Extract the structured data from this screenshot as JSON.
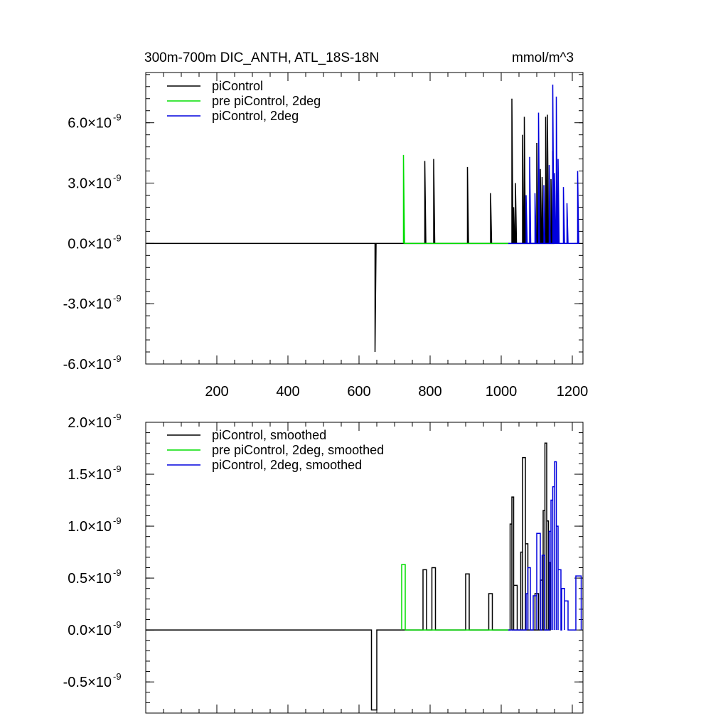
{
  "chart_data": [
    {
      "type": "line",
      "title": "300m-700m DIC_ANTH, ATL_18S-18N",
      "units": "mmol/m^3",
      "xlim": [
        0,
        1230
      ],
      "ylim": [
        -6e-09,
        8.5e-09
      ],
      "x_ticks": [
        200,
        400,
        600,
        800,
        1000,
        1200
      ],
      "x_tick_labels": [
        "200",
        "400",
        "600",
        "800",
        "1000",
        "1200"
      ],
      "y_ticks": [
        -6e-09,
        -3e-09,
        0.0,
        3e-09,
        6e-09
      ],
      "y_tick_labels": [
        {
          "mant": "-6.0",
          "exp": "-9"
        },
        {
          "mant": "-3.0",
          "exp": "-9"
        },
        {
          "mant": "0.0",
          "exp": "-9"
        },
        {
          "mant": "3.0",
          "exp": "-9"
        },
        {
          "mant": "6.0",
          "exp": "-9"
        }
      ],
      "legend_position": "top-left",
      "series": [
        {
          "name": "piControl",
          "color": "#000000",
          "x_range": [
            0,
            1030
          ],
          "spikes": [
            [
              645,
              -5.4e-09
            ],
            [
              785,
              4.1e-09
            ],
            [
              810,
              4.2e-09
            ],
            [
              905,
              3.8e-09
            ],
            [
              970,
              2.5e-09
            ],
            [
              1030,
              7.2e-09
            ],
            [
              1035,
              1.8e-09
            ],
            [
              1040,
              3e-09
            ],
            [
              1060,
              5.4e-09
            ],
            [
              1065,
              6.3e-09
            ],
            [
              1100,
              5e-09
            ],
            [
              1110,
              3.7e-09
            ],
            [
              1115,
              3.3e-09
            ],
            [
              1125,
              6.3e-09
            ],
            [
              1130,
              6.4e-09
            ],
            [
              1140,
              3.2e-09
            ],
            [
              1145,
              4.6e-09
            ]
          ]
        },
        {
          "name": "pre piControl, 2deg",
          "color": "#00dd00",
          "x_range": [
            725,
            1020
          ],
          "spikes": [
            [
              725,
              4.4e-09
            ]
          ]
        },
        {
          "name": "piControl, 2deg",
          "color": "#0000dd",
          "x_range": [
            1020,
            1220
          ],
          "spikes": [
            [
              1070,
              2.4e-09
            ],
            [
              1080,
              4.3e-09
            ],
            [
              1095,
              2.5e-09
            ],
            [
              1105,
              6.5e-09
            ],
            [
              1120,
              2.9e-09
            ],
            [
              1135,
              3.9e-09
            ],
            [
              1145,
              7.9e-09
            ],
            [
              1150,
              3.5e-09
            ],
            [
              1155,
              7.3e-09
            ],
            [
              1160,
              4.2e-09
            ],
            [
              1175,
              2.8e-09
            ],
            [
              1185,
              2e-09
            ],
            [
              1215,
              3.6e-09
            ]
          ]
        }
      ]
    },
    {
      "type": "line",
      "title": "",
      "xlim": [
        0,
        1230
      ],
      "ylim": [
        -8e-10,
        2e-09
      ],
      "x_ticks": [
        200,
        400,
        600,
        800,
        1000,
        1200
      ],
      "y_ticks": [
        -5e-10,
        0.0,
        5e-10,
        1e-09,
        1.5e-09,
        2e-09
      ],
      "y_tick_labels": [
        {
          "mant": "-0.5",
          "exp": "-9"
        },
        {
          "mant": "0.0",
          "exp": "-9"
        },
        {
          "mant": "0.5",
          "exp": "-9"
        },
        {
          "mant": "1.0",
          "exp": "-9"
        },
        {
          "mant": "1.5",
          "exp": "-9"
        },
        {
          "mant": "2.0",
          "exp": "-9"
        }
      ],
      "legend_position": "top-left",
      "series": [
        {
          "name": "piControl, smoothed",
          "color": "#000000",
          "x_range": [
            0,
            1030
          ],
          "steps": [
            [
              635,
              650,
              -7.7e-10
            ],
            [
              780,
              790,
              5.8e-10
            ],
            [
              805,
              815,
              6e-10
            ],
            [
              900,
              910,
              5.4e-10
            ],
            [
              965,
              975,
              3.5e-10
            ],
            [
              1025,
              1030,
              1.02e-09
            ],
            [
              1030,
              1035,
              1.28e-09
            ],
            [
              1035,
              1045,
              4.3e-10
            ],
            [
              1055,
              1060,
              7.5e-10
            ],
            [
              1060,
              1068,
              1.66e-09
            ],
            [
              1068,
              1075,
              8.3e-10
            ],
            [
              1095,
              1105,
              3.5e-10
            ],
            [
              1110,
              1118,
              4.8e-10
            ],
            [
              1118,
              1123,
              1.15e-09
            ],
            [
              1123,
              1128,
              1.8e-09
            ],
            [
              1128,
              1133,
              1.05e-09
            ],
            [
              1133,
              1138,
              6.5e-10
            ]
          ]
        },
        {
          "name": "pre piControl, 2deg, smoothed",
          "color": "#00dd00",
          "x_range": [
            720,
            1020
          ],
          "steps": [
            [
              720,
              730,
              6.3e-10
            ]
          ]
        },
        {
          "name": "piControl, 2deg, smoothed",
          "color": "#0000dd",
          "x_range": [
            1020,
            1225
          ],
          "steps": [
            [
              1070,
              1075,
              3.5e-10
            ],
            [
              1075,
              1082,
              6e-10
            ],
            [
              1090,
              1100,
              3.3e-10
            ],
            [
              1100,
              1110,
              9.3e-10
            ],
            [
              1115,
              1122,
              7.2e-10
            ],
            [
              1135,
              1140,
              9.5e-10
            ],
            [
              1140,
              1145,
              1.25e-09
            ],
            [
              1145,
              1150,
              1.38e-09
            ],
            [
              1150,
              1155,
              1.62e-09
            ],
            [
              1155,
              1160,
              1e-09
            ],
            [
              1160,
              1168,
              5.8e-10
            ],
            [
              1170,
              1178,
              4e-10
            ],
            [
              1178,
              1188,
              2.8e-10
            ],
            [
              1210,
              1225,
              5.2e-10
            ]
          ]
        }
      ]
    }
  ]
}
